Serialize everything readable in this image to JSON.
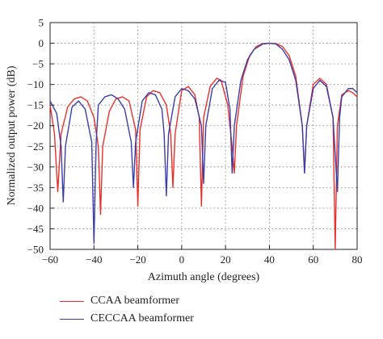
{
  "chart_data": {
    "type": "line",
    "xlabel": "Azimuth angle (degrees)",
    "ylabel": "Normalized output power (dB)",
    "xlim": [
      -60,
      80
    ],
    "ylim": [
      -50,
      5
    ],
    "xticks": [
      -60,
      -40,
      -20,
      0,
      20,
      40,
      60,
      80
    ],
    "yticks": [
      5,
      0,
      -5,
      -10,
      -15,
      -20,
      -25,
      -30,
      -35,
      -40,
      -45,
      -50
    ],
    "xtick_labels": [
      "−60",
      "−40",
      "−20",
      "0",
      "20",
      "40",
      "60",
      "80"
    ],
    "ytick_labels": [
      "5",
      "0",
      "−5",
      "−10",
      "−15",
      "−20",
      "−25",
      "−30",
      "−35",
      "−40",
      "−45",
      "−50"
    ],
    "grid": true,
    "grid_style": "dotted",
    "legend_position": "below",
    "series": [
      {
        "name": "CCAA beamformer",
        "color": "#e8302a",
        "x": [
          -60,
          -58,
          -56.5,
          -55,
          -52,
          -49,
          -46,
          -43,
          -40,
          -38,
          -37,
          -36,
          -33,
          -30,
          -27,
          -24,
          -21,
          -20,
          -19,
          -16,
          -13,
          -10,
          -7,
          -5,
          -4,
          -3,
          0,
          3,
          6,
          8,
          9,
          10,
          13,
          16,
          18,
          21,
          23,
          24,
          25,
          28,
          31,
          34,
          37,
          40,
          43,
          46,
          49,
          52,
          55,
          56,
          57,
          60,
          63,
          66,
          69,
          70,
          71,
          73,
          76,
          78,
          80
        ],
        "y": [
          -15,
          -22,
          -36,
          -22,
          -15.5,
          -13.5,
          -13,
          -14,
          -18,
          -25,
          -41.5,
          -25,
          -16.5,
          -13.5,
          -13,
          -14,
          -21,
          -39.5,
          -21,
          -13,
          -11.5,
          -12,
          -15,
          -22,
          -35,
          -22,
          -11.5,
          -10.5,
          -12.5,
          -18,
          -39.5,
          -18,
          -10.5,
          -8.5,
          -9,
          -15,
          -25,
          -31.5,
          -20,
          -8,
          -3,
          -0.8,
          -0.1,
          0,
          -0.1,
          -0.8,
          -3,
          -8,
          -20,
          -31.5,
          -20,
          -10,
          -8.5,
          -10,
          -18,
          -50,
          -20,
          -12.5,
          -11.5,
          -12,
          -13
        ]
      },
      {
        "name": "CECCAA beamformer",
        "color": "#3b3ea8",
        "x": [
          -60,
          -57,
          -55,
          -54,
          -53,
          -50,
          -47,
          -44,
          -41,
          -40,
          -39,
          -38,
          -35,
          -32,
          -29,
          -26,
          -23,
          -22,
          -21,
          -18,
          -15,
          -12,
          -9,
          -8,
          -7,
          -6,
          -3,
          0,
          3,
          6,
          9,
          10,
          11,
          14,
          17,
          20,
          22,
          23,
          24,
          27,
          30,
          33,
          37,
          40,
          43,
          46,
          49,
          52,
          55,
          56,
          57,
          60,
          63,
          66,
          69,
          71,
          72,
          73,
          76,
          78,
          80
        ],
        "y": [
          -14,
          -17,
          -25,
          -38.5,
          -25,
          -15.5,
          -14,
          -16,
          -24,
          -48.5,
          -24,
          -15,
          -13,
          -12.5,
          -13.5,
          -16,
          -24,
          -35,
          -24,
          -14,
          -12,
          -12.5,
          -16,
          -22,
          -37,
          -22,
          -13,
          -11,
          -11.5,
          -13.5,
          -20,
          -34,
          -20,
          -11,
          -9,
          -9.5,
          -16,
          -31.5,
          -20,
          -9,
          -4,
          -1.5,
          -0.2,
          0,
          -0.2,
          -1.5,
          -4,
          -9,
          -20,
          -31.5,
          -20,
          -11,
          -9,
          -10.5,
          -18,
          -36,
          -18,
          -13,
          -11,
          -11,
          -12
        ]
      }
    ]
  }
}
